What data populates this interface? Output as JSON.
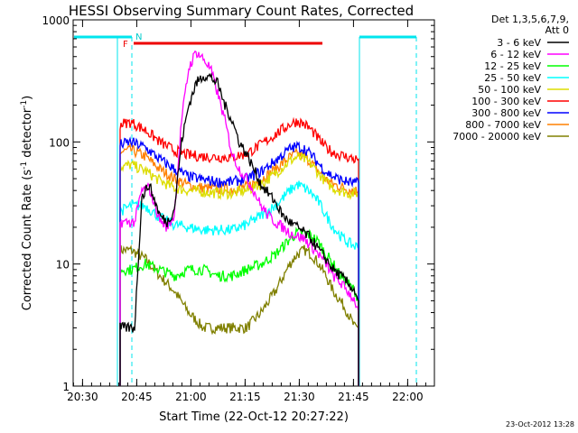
{
  "chart_data": {
    "type": "line",
    "title": "HESSI Observing Summary Count Rates, Corrected",
    "xlabel": "Start Time (22-Oct-12 20:27:22)",
    "ylabel_parts": [
      "Corrected Count Rate (s",
      "-1",
      " detector",
      "-1",
      ")"
    ],
    "yscale": "log",
    "ylim": [
      1,
      1000
    ],
    "xlim_min": [
      0,
      100
    ],
    "x_ticks": [
      {
        "m": 2.6,
        "label": "20:30"
      },
      {
        "m": 17.6,
        "label": "20:45"
      },
      {
        "m": 32.6,
        "label": "21:00"
      },
      {
        "m": 47.6,
        "label": "21:15"
      },
      {
        "m": 62.6,
        "label": "21:30"
      },
      {
        "m": 77.6,
        "label": "21:45"
      },
      {
        "m": 92.6,
        "label": "22:00"
      }
    ],
    "y_ticks": [
      {
        "v": 1,
        "label": "1"
      },
      {
        "v": 10,
        "label": "10"
      },
      {
        "v": 100,
        "label": "100"
      },
      {
        "v": 1000,
        "label": "1000"
      }
    ],
    "legend_header": [
      "Det 1,3,5,6,7,9,",
      "Att 0"
    ],
    "legend_position": "top-right outside",
    "series": [
      {
        "name": "3 - 6 keV",
        "color": "#000000",
        "x": [
          13,
          16,
          17,
          19,
          21,
          24,
          26,
          28,
          30,
          32,
          34,
          36,
          38,
          40,
          42,
          44,
          46,
          48,
          50,
          52,
          54,
          56,
          58,
          60,
          62,
          64,
          66,
          68,
          70,
          72,
          74,
          76,
          78,
          79
        ],
        "y": [
          3,
          3,
          3,
          35,
          45,
          25,
          22,
          28,
          100,
          200,
          300,
          350,
          340,
          300,
          200,
          150,
          100,
          80,
          60,
          45,
          38,
          32,
          25,
          22,
          20,
          18,
          16,
          13,
          11,
          9,
          8,
          7,
          6,
          5
        ]
      },
      {
        "name": "6 - 12 keV",
        "color": "#ff00ff",
        "x": [
          13,
          16,
          17,
          19,
          21,
          24,
          26,
          28,
          30,
          32,
          34,
          36,
          38,
          40,
          42,
          44,
          46,
          48,
          50,
          52,
          54,
          56,
          58,
          60,
          62,
          64,
          66,
          68,
          70,
          72,
          74,
          76,
          78,
          79
        ],
        "y": [
          22,
          22,
          22,
          40,
          42,
          23,
          20,
          25,
          150,
          400,
          550,
          480,
          400,
          250,
          150,
          80,
          60,
          50,
          40,
          30,
          25,
          22,
          20,
          18,
          17,
          16,
          14,
          12,
          10,
          8,
          7,
          6,
          5,
          4
        ]
      },
      {
        "name": "12 - 25 keV",
        "color": "#00ff00",
        "x": [
          13,
          16,
          20,
          24,
          28,
          32,
          36,
          40,
          44,
          48,
          52,
          56,
          60,
          62,
          64,
          66,
          68,
          70,
          72,
          74,
          76,
          78,
          79
        ],
        "y": [
          9,
          9,
          10,
          9,
          8,
          9,
          9,
          8,
          8,
          9,
          10,
          12,
          16,
          18,
          18,
          17,
          15,
          12,
          10,
          8,
          7,
          6,
          5
        ]
      },
      {
        "name": "25 - 50 keV",
        "color": "#00ffff",
        "x": [
          13,
          16,
          20,
          24,
          28,
          32,
          36,
          40,
          44,
          48,
          52,
          56,
          60,
          62,
          64,
          66,
          68,
          70,
          72,
          74,
          76,
          78,
          79
        ],
        "y": [
          27,
          30,
          30,
          24,
          21,
          20,
          19,
          19,
          19,
          21,
          25,
          30,
          40,
          45,
          42,
          38,
          32,
          25,
          20,
          17,
          15,
          14,
          14
        ]
      },
      {
        "name": "50 - 100 keV",
        "color": "#dddd00",
        "x": [
          13,
          16,
          20,
          24,
          28,
          32,
          36,
          40,
          44,
          48,
          52,
          56,
          60,
          62,
          64,
          66,
          68,
          70,
          72,
          74,
          76,
          78,
          79
        ],
        "y": [
          62,
          65,
          58,
          48,
          42,
          40,
          39,
          38,
          38,
          40,
          45,
          55,
          70,
          75,
          72,
          65,
          55,
          47,
          42,
          40,
          38,
          38,
          38
        ]
      },
      {
        "name": "100 - 300 keV",
        "color": "#ff0000",
        "x": [
          13,
          16,
          20,
          24,
          28,
          32,
          36,
          40,
          44,
          48,
          52,
          56,
          60,
          62,
          64,
          66,
          68,
          70,
          72,
          74,
          76,
          78,
          79
        ],
        "y": [
          140,
          145,
          125,
          100,
          85,
          78,
          76,
          75,
          75,
          80,
          95,
          115,
          140,
          148,
          140,
          125,
          105,
          90,
          82,
          78,
          75,
          72,
          72
        ]
      },
      {
        "name": "300 - 800 keV",
        "color": "#0000ff",
        "x": [
          13,
          16,
          20,
          24,
          28,
          32,
          36,
          40,
          44,
          48,
          52,
          56,
          60,
          62,
          64,
          66,
          68,
          70,
          72,
          74,
          76,
          78,
          79
        ],
        "y": [
          95,
          100,
          90,
          72,
          60,
          52,
          49,
          47,
          47,
          50,
          57,
          70,
          88,
          92,
          88,
          78,
          66,
          57,
          52,
          49,
          47,
          46,
          46
        ]
      },
      {
        "name": "800 - 7000 keV",
        "color": "#ff8000",
        "x": [
          13,
          16,
          20,
          24,
          28,
          32,
          36,
          40,
          44,
          48,
          52,
          56,
          60,
          62,
          64,
          66,
          68,
          70,
          72,
          74,
          76,
          78,
          79
        ],
        "y": [
          82,
          86,
          76,
          60,
          50,
          44,
          42,
          41,
          41,
          43,
          49,
          60,
          75,
          80,
          76,
          67,
          57,
          49,
          45,
          43,
          41,
          40,
          40
        ]
      },
      {
        "name": "7000 - 20000 keV",
        "color": "#808000",
        "x": [
          13,
          16,
          20,
          24,
          28,
          32,
          36,
          40,
          44,
          48,
          52,
          56,
          60,
          62,
          64,
          66,
          68,
          70,
          72,
          74,
          76,
          78,
          79
        ],
        "y": [
          13,
          13,
          11,
          8,
          6,
          4,
          3,
          3,
          3,
          3,
          4,
          6,
          10,
          12,
          13,
          12,
          10,
          8,
          6,
          5,
          4,
          3,
          3
        ]
      }
    ],
    "markers": {
      "F_label": "F",
      "N_label": "N"
    },
    "timestamp": "23-Oct-2012 13:28"
  }
}
